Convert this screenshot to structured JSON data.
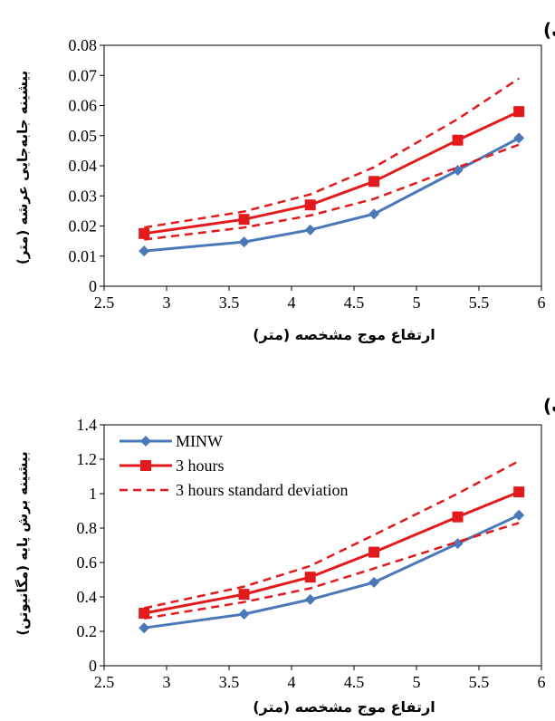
{
  "chart_data": [
    {
      "type": "line",
      "panel_label": "(الف)",
      "xlabel": "ارتفاع موج مشخصه (متر)",
      "ylabel": "بیشینه جابه‌جایی عرشه (متر)",
      "xlim": [
        2.5,
        6
      ],
      "ylim": [
        0,
        0.08
      ],
      "x_ticks": [
        "2.5",
        "3",
        "3.5",
        "4",
        "4.5",
        "5",
        "5.5",
        "6"
      ],
      "y_ticks": [
        "0",
        "0.01",
        "0.02",
        "0.03",
        "0.04",
        "0.05",
        "0.06",
        "0.07",
        "0.08"
      ],
      "x": [
        2.82,
        3.62,
        4.15,
        4.66,
        5.33,
        5.82
      ],
      "series": [
        {
          "name": "MINW",
          "values": [
            0.0117,
            0.0147,
            0.0187,
            0.024,
            0.0385,
            0.0492
          ],
          "color": "#4a78b8",
          "marker": "diamond",
          "dashed": false
        },
        {
          "name": "3 hours",
          "values": [
            0.0175,
            0.0222,
            0.027,
            0.0348,
            0.0485,
            0.058
          ],
          "color": "#e31a1c",
          "marker": "square",
          "dashed": false
        },
        {
          "name": "3 hours standard deviation",
          "values": [
            0.0195,
            0.0248,
            0.0305,
            0.0395,
            0.0555,
            0.069
          ],
          "color": "#e31a1c",
          "marker": "none",
          "dashed": true,
          "legend": true
        },
        {
          "name": "3 hours standard deviation",
          "values": [
            0.0155,
            0.0195,
            0.0235,
            0.029,
            0.0395,
            0.047
          ],
          "color": "#e31a1c",
          "marker": "none",
          "dashed": true,
          "legend": false
        }
      ],
      "legend": false
    },
    {
      "type": "line",
      "panel_label": "(ب)",
      "xlabel": "ارتفاع موج مشخصه (متر)",
      "ylabel": "بیشینه برش پایه (مگانیوتن)",
      "xlim": [
        2.5,
        6
      ],
      "ylim": [
        0,
        1.4
      ],
      "x_ticks": [
        "2.5",
        "3",
        "3.5",
        "4",
        "4.5",
        "5",
        "5.5",
        "6"
      ],
      "y_ticks": [
        "0",
        "0.2",
        "0.4",
        "0.6",
        "0.8",
        "1",
        "1.2",
        "1.4"
      ],
      "x": [
        2.82,
        3.62,
        4.15,
        4.66,
        5.33,
        5.82
      ],
      "series": [
        {
          "name": "MINW",
          "values": [
            0.22,
            0.3,
            0.385,
            0.485,
            0.71,
            0.875
          ],
          "color": "#4a78b8",
          "marker": "diamond",
          "dashed": false
        },
        {
          "name": "3 hours",
          "values": [
            0.305,
            0.415,
            0.515,
            0.66,
            0.865,
            1.01
          ],
          "color": "#e31a1c",
          "marker": "square",
          "dashed": false
        },
        {
          "name": "3 hours standard deviation",
          "values": [
            0.335,
            0.46,
            0.58,
            0.76,
            1.0,
            1.19
          ],
          "color": "#e31a1c",
          "marker": "none",
          "dashed": true,
          "legend": true
        },
        {
          "name": "3 hours standard deviation",
          "values": [
            0.275,
            0.37,
            0.45,
            0.565,
            0.72,
            0.83
          ],
          "color": "#e31a1c",
          "marker": "none",
          "dashed": true,
          "legend": false
        }
      ],
      "legend": true,
      "legend_placement": "top-left"
    }
  ]
}
